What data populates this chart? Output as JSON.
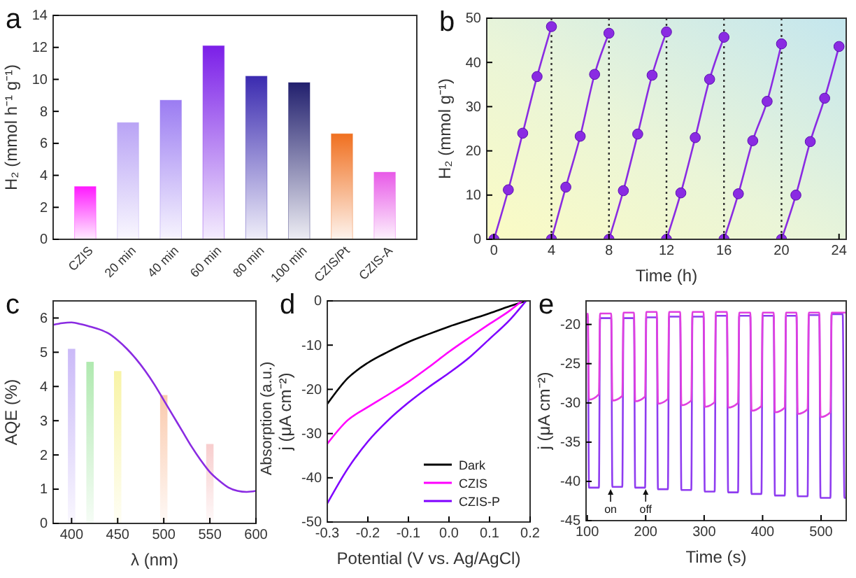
{
  "chart_data": [
    {
      "type": "bar",
      "title": "a",
      "ylabel": "H₂ (mmol h⁻¹ g⁻¹)",
      "categories": [
        "CZIS",
        "20 min",
        "40 min",
        "60 min",
        "80 min",
        "100 min",
        "CZIS/Pt",
        "CZIS-A"
      ],
      "values": [
        3.3,
        7.3,
        8.7,
        12.1,
        10.2,
        9.8,
        6.6,
        4.2
      ],
      "colors": [
        "#ff1aff",
        "#b9a4f5",
        "#9b7cf2",
        "#7b1fe8",
        "#3b2bb0",
        "#22206e",
        "#f07020",
        "#e85ae8"
      ],
      "ylim": [
        0,
        14
      ],
      "yticks": [
        0,
        2,
        4,
        6,
        8,
        10,
        12,
        14
      ]
    },
    {
      "type": "line",
      "title": "b",
      "xlabel": "Time (h)",
      "ylabel": "H₂ (mmol g⁻¹)",
      "xlim": [
        -0.5,
        24.5
      ],
      "xticks": [
        0,
        4,
        8,
        12,
        16,
        20,
        24
      ],
      "ylim": [
        0,
        50
      ],
      "yticks": [
        0,
        10,
        20,
        30,
        40,
        50
      ],
      "marker": "circle",
      "series": [
        {
          "color": "#8a2be2",
          "x": [
            0,
            1,
            2,
            3,
            4
          ],
          "values": [
            0,
            11.2,
            24,
            36.8,
            48.1
          ]
        },
        {
          "color": "#8a2be2",
          "x": [
            4,
            5,
            6,
            7,
            8
          ],
          "values": [
            0,
            11.8,
            23.3,
            37.3,
            46.6
          ]
        },
        {
          "color": "#8a2be2",
          "x": [
            8,
            9,
            10,
            11,
            12
          ],
          "values": [
            0,
            11,
            23.8,
            37.1,
            46.9
          ]
        },
        {
          "color": "#8a2be2",
          "x": [
            12,
            13,
            14,
            15,
            16
          ],
          "values": [
            0,
            10.5,
            23,
            36.2,
            45.7
          ]
        },
        {
          "color": "#8a2be2",
          "x": [
            16,
            17,
            18,
            19,
            20
          ],
          "values": [
            0,
            10.3,
            22.3,
            31.2,
            44.2
          ]
        },
        {
          "color": "#8a2be2",
          "x": [
            20,
            21,
            22,
            23,
            24
          ],
          "values": [
            0,
            10,
            22.1,
            31.9,
            43.6
          ]
        }
      ],
      "ref_lines": [
        {
          "axis": "x",
          "value": 4,
          "color": "#333333",
          "line_style": "dotted"
        },
        {
          "axis": "x",
          "value": 8,
          "color": "#333333",
          "line_style": "dotted"
        },
        {
          "axis": "x",
          "value": 12,
          "color": "#333333",
          "line_style": "dotted"
        },
        {
          "axis": "x",
          "value": 16,
          "color": "#333333",
          "line_style": "dotted"
        },
        {
          "axis": "x",
          "value": 20,
          "color": "#333333",
          "line_style": "dotted"
        }
      ]
    },
    {
      "type": "line",
      "title": "c",
      "xlabel": "λ (nm)",
      "ylabel": "AQE (%)",
      "xlim": [
        380,
        600
      ],
      "xticks": [
        400,
        450,
        500,
        550,
        600
      ],
      "ylim": [
        0,
        6.5
      ],
      "yticks": [
        0,
        1,
        2,
        3,
        4,
        5,
        6
      ],
      "series": [
        {
          "type": "bar",
          "x": [
            400,
            420,
            450,
            500,
            550
          ],
          "values": [
            5.1,
            4.72,
            4.45,
            3.75,
            2.32
          ],
          "colors": [
            "#b49cf5",
            "#8ee08e",
            "#f5ef80",
            "#f8b48c",
            "#f5b8b8"
          ]
        },
        {
          "color": "#8a2be2",
          "x": [
            380,
            390,
            400,
            410,
            420,
            430,
            440,
            450,
            460,
            470,
            480,
            490,
            500,
            510,
            520,
            530,
            540,
            550,
            560,
            570,
            580,
            590,
            600
          ],
          "values": [
            5.8,
            5.85,
            5.87,
            5.82,
            5.75,
            5.67,
            5.55,
            5.35,
            5.1,
            4.8,
            4.45,
            4.05,
            3.6,
            3.15,
            2.7,
            2.25,
            1.85,
            1.5,
            1.25,
            1.05,
            0.95,
            0.92,
            0.95
          ]
        }
      ]
    },
    {
      "type": "line",
      "title": "d",
      "xlabel": "Potential (V vs. Ag/AgCl)",
      "ylabel": "j (μA cm⁻²)",
      "annotations": [
        "Absorption (a.u.)"
      ],
      "xlim": [
        -0.3,
        0.2
      ],
      "xticks": [
        -0.3,
        -0.2,
        -0.1,
        {
          "value": 0,
          "label": "0.0"
        },
        0.1,
        0.2
      ],
      "ylim": [
        -50,
        0
      ],
      "yticks": [
        -50,
        -40,
        -30,
        -20,
        -10,
        0
      ],
      "legend": "bottom right",
      "series": [
        {
          "name": "Dark",
          "color": "#000000",
          "x": [
            -0.3,
            -0.25,
            -0.2,
            -0.15,
            -0.1,
            -0.05,
            0,
            0.05,
            0.1,
            0.15,
            0.19
          ],
          "values": [
            -23.3,
            -17.5,
            -14,
            -11.5,
            -9.3,
            -7.5,
            -5.8,
            -4.3,
            -2.8,
            -1.2,
            0
          ]
        },
        {
          "name": "CZIS",
          "color": "#ff00ff",
          "x": [
            -0.3,
            -0.25,
            -0.2,
            -0.15,
            -0.1,
            -0.05,
            0,
            0.05,
            0.1,
            0.15,
            0.18
          ],
          "values": [
            -32.3,
            -27,
            -24,
            -21.2,
            -18.3,
            -15,
            -11.5,
            -8.3,
            -5.2,
            -2.2,
            0
          ]
        },
        {
          "name": "CZIS-P",
          "color": "#7f00ff",
          "x": [
            -0.3,
            -0.25,
            -0.2,
            -0.15,
            -0.1,
            -0.05,
            0,
            0.05,
            0.1,
            0.15,
            0.19
          ],
          "values": [
            -45.8,
            -38,
            -31.8,
            -27,
            -23,
            -19.5,
            -16.3,
            -12.8,
            -8.6,
            -4.3,
            0
          ]
        }
      ]
    },
    {
      "type": "line",
      "title": "e",
      "xlabel": "Time (s)",
      "ylabel": "j (μA cm⁻²)",
      "xlim": [
        98,
        543
      ],
      "xticks": [
        100,
        200,
        300,
        400,
        500
      ],
      "ylim": [
        -45,
        -17
      ],
      "yticks": [
        -45,
        -40,
        -35,
        -30,
        -25,
        -20
      ],
      "annotations": [
        {
          "text": "on",
          "x": 140,
          "y": -40.8
        },
        {
          "text": "off",
          "x": 200,
          "y": -40.8
        }
      ],
      "series": [
        {
          "color": "#8f3cf0",
          "x": [
            98,
            101,
            103,
            120,
            122,
            141,
            143,
            160,
            162,
            180,
            182,
            199,
            201,
            219,
            221,
            238,
            240,
            259,
            261,
            278,
            280,
            299,
            301,
            318,
            320,
            339,
            341,
            358,
            360,
            379,
            381,
            398,
            400,
            419,
            421,
            438,
            440,
            458,
            460,
            477,
            479,
            497,
            499,
            516,
            518,
            537,
            540,
            543
          ],
          "values": [
            -19,
            -19.1,
            -40.8,
            -40.8,
            -19.2,
            -19.2,
            -40.7,
            -40.7,
            -19.2,
            -19.2,
            -40.8,
            -40.8,
            -19.1,
            -19.1,
            -41,
            -41,
            -19,
            -19,
            -41.1,
            -41.1,
            -19,
            -19,
            -41.3,
            -41.3,
            -18.9,
            -18.9,
            -41.4,
            -41.4,
            -18.9,
            -18.9,
            -41.6,
            -41.6,
            -18.9,
            -18.9,
            -41.8,
            -41.8,
            -18.9,
            -18.9,
            -41.9,
            -41.9,
            -18.8,
            -18.8,
            -42.1,
            -42.1,
            -18.7,
            -18.7,
            -42.1,
            -42.1
          ]
        },
        {
          "color": "#e040e0",
          "x": [
            98,
            101,
            103,
            120,
            122,
            141,
            143,
            160,
            162,
            180,
            182,
            199,
            201,
            219,
            221,
            238,
            240,
            259,
            261,
            278,
            280,
            299,
            301,
            318,
            320,
            339,
            341,
            358,
            360,
            379,
            381,
            398,
            400,
            419,
            421,
            438,
            440,
            458,
            460,
            477,
            479,
            497,
            499,
            516,
            518,
            543
          ],
          "values": [
            -19,
            -18.6,
            -29.6,
            -28.9,
            -18.6,
            -18.6,
            -29.7,
            -29.1,
            -18.5,
            -18.5,
            -29.8,
            -29.2,
            -18.4,
            -18.4,
            -30.1,
            -29.5,
            -18.4,
            -18.4,
            -30.3,
            -29.7,
            -18.4,
            -18.4,
            -30.5,
            -29.9,
            -18.4,
            -18.4,
            -30.6,
            -30,
            -18.5,
            -18.5,
            -31,
            -30.4,
            -18.5,
            -18.5,
            -31.2,
            -30.6,
            -18.5,
            -18.5,
            -31.4,
            -30.8,
            -18.5,
            -18.5,
            -31.8,
            -31.2,
            -18.5,
            -18.5
          ]
        }
      ]
    }
  ]
}
